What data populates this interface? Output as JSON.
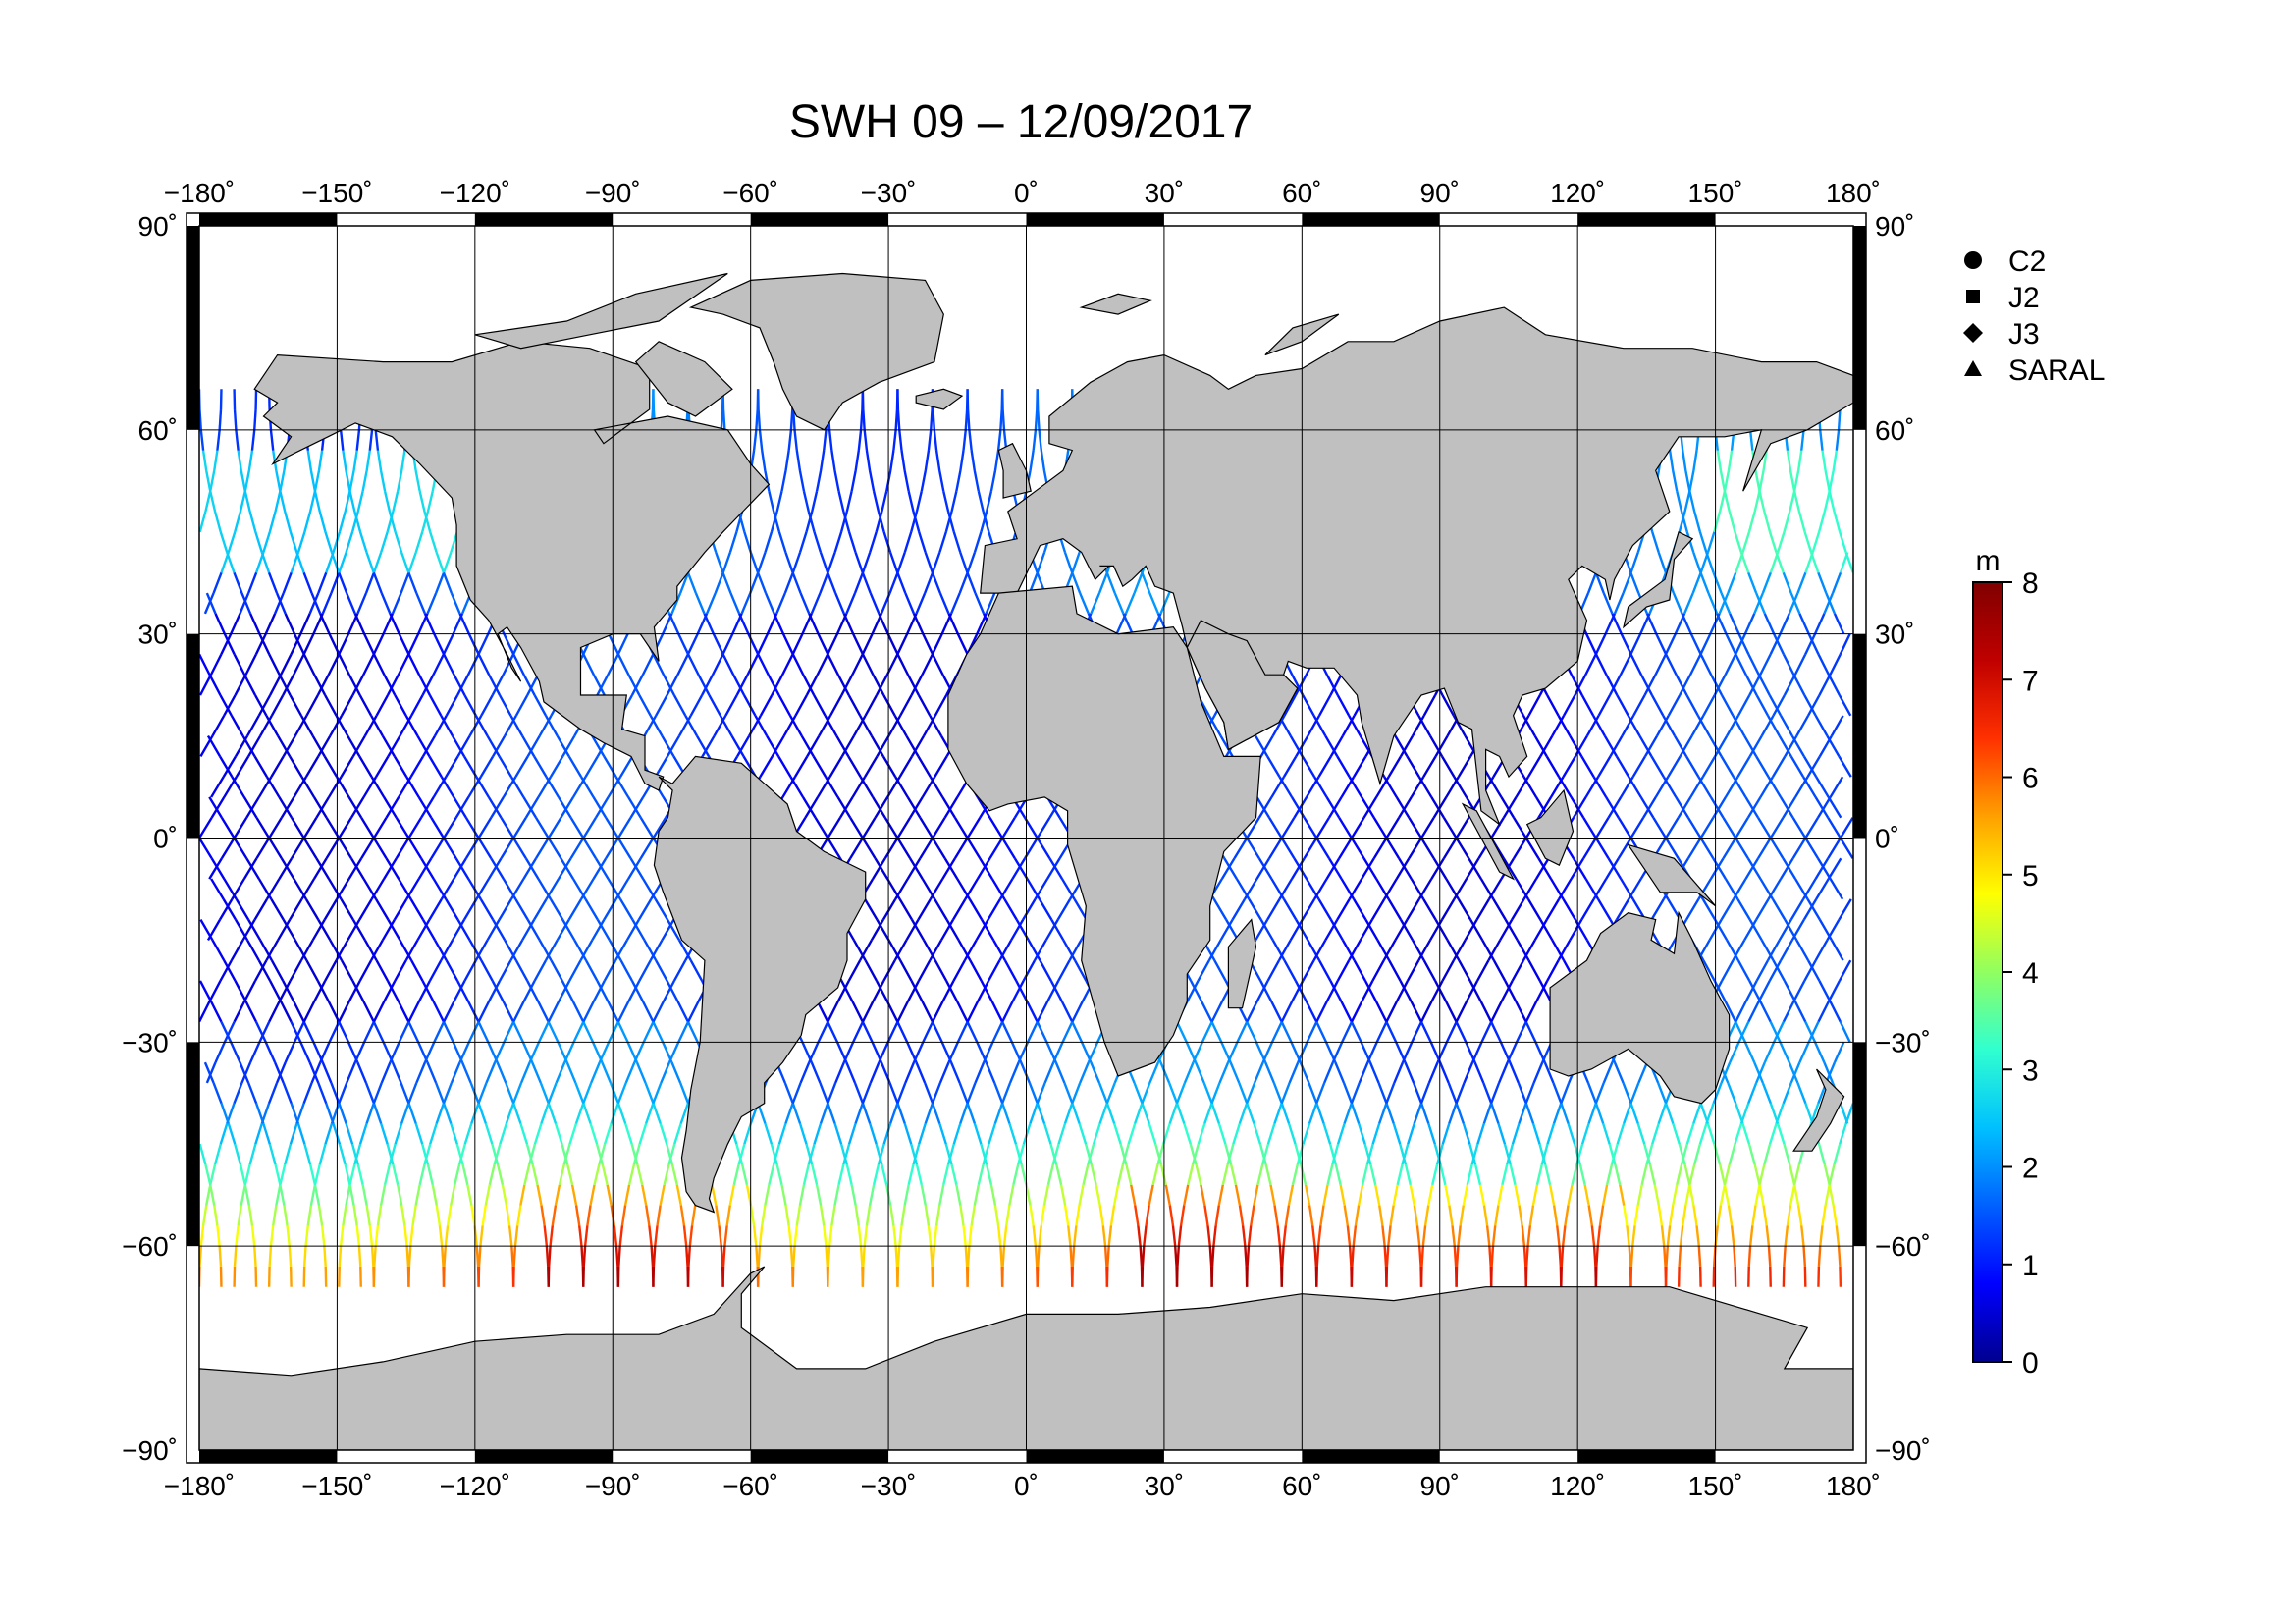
{
  "title": "SWH 09 – 12/09/2017",
  "map": {
    "lon_range": [
      -180,
      180
    ],
    "lat_range": [
      -90,
      90
    ],
    "lon_ticks": [
      "−180˚",
      "−150˚",
      "−120˚",
      "−90˚",
      "−60˚",
      "−30˚",
      "0˚",
      "30˚",
      "60˚",
      "90˚",
      "120˚",
      "150˚",
      "180˚"
    ],
    "lat_ticks": [
      "90˚",
      "60˚",
      "30˚",
      "0˚",
      "−30˚",
      "−60˚",
      "−90˚"
    ],
    "lon_values": [
      -180,
      -150,
      -120,
      -90,
      -60,
      -30,
      0,
      30,
      60,
      90,
      120,
      150,
      180
    ],
    "lat_values": [
      90,
      60,
      30,
      0,
      -30,
      -60,
      -90
    ],
    "land_color": "#c0c0c0",
    "ocean_color": "#ffffff",
    "grid": true
  },
  "legend": {
    "placement": "top-right",
    "items": [
      {
        "symbol": "circle",
        "label": "C2"
      },
      {
        "symbol": "square",
        "label": "J2"
      },
      {
        "symbol": "diamond",
        "label": "J3"
      },
      {
        "symbol": "triangle",
        "label": "SARAL"
      }
    ]
  },
  "colorbar": {
    "unit": "m",
    "range": [
      0,
      8
    ],
    "ticks": [
      "0",
      "1",
      "2",
      "3",
      "4",
      "5",
      "6",
      "7",
      "8"
    ],
    "colors": [
      "#00008f",
      "#0000ff",
      "#0060ff",
      "#00c0ff",
      "#30ffd0",
      "#90ff60",
      "#ffff00",
      "#ffa000",
      "#ff3000",
      "#c00000",
      "#800000"
    ]
  }
}
